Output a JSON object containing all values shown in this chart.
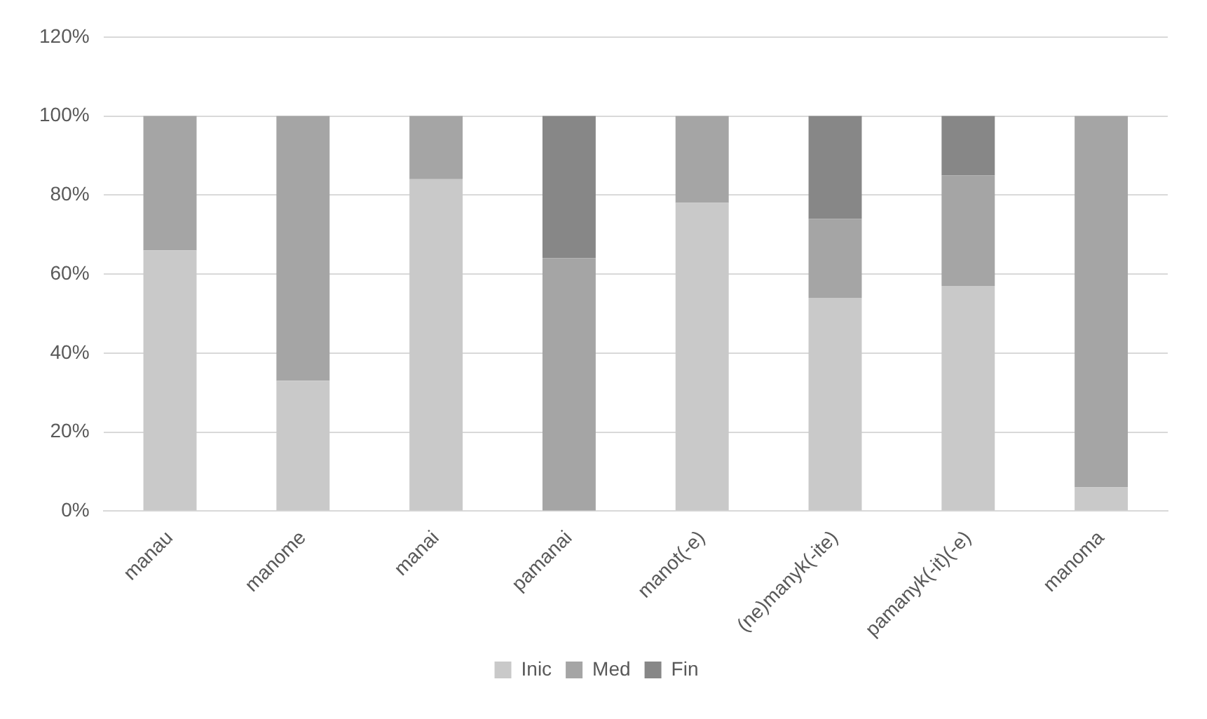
{
  "chart_data": {
    "type": "bar",
    "stacked": true,
    "categories": [
      "manau",
      "manome",
      "manai",
      "pamanai",
      "manot(-e)",
      "(ne)manyk(-ite)",
      "pamanyk(-it)(-e)",
      "manoma"
    ],
    "series": [
      {
        "name": "Inic",
        "color": "#c9c9c9",
        "values": [
          66,
          33,
          84,
          0,
          78,
          54,
          57,
          6
        ]
      },
      {
        "name": "Med",
        "color": "#a5a5a5",
        "values": [
          34,
          67,
          16,
          64,
          22,
          20,
          28,
          94
        ]
      },
      {
        "name": "Fin",
        "color": "#878787",
        "values": [
          0,
          0,
          0,
          36,
          0,
          26,
          15,
          0
        ]
      }
    ],
    "ylim": [
      0,
      120
    ],
    "yticks": [
      {
        "value": 0,
        "label": "0%"
      },
      {
        "value": 20,
        "label": "20%"
      },
      {
        "value": 40,
        "label": "40%"
      },
      {
        "value": 60,
        "label": "60%"
      },
      {
        "value": 80,
        "label": "80%"
      },
      {
        "value": 100,
        "label": "100%"
      },
      {
        "value": 120,
        "label": "120%"
      }
    ],
    "grid": "y",
    "legend": "bottom"
  }
}
